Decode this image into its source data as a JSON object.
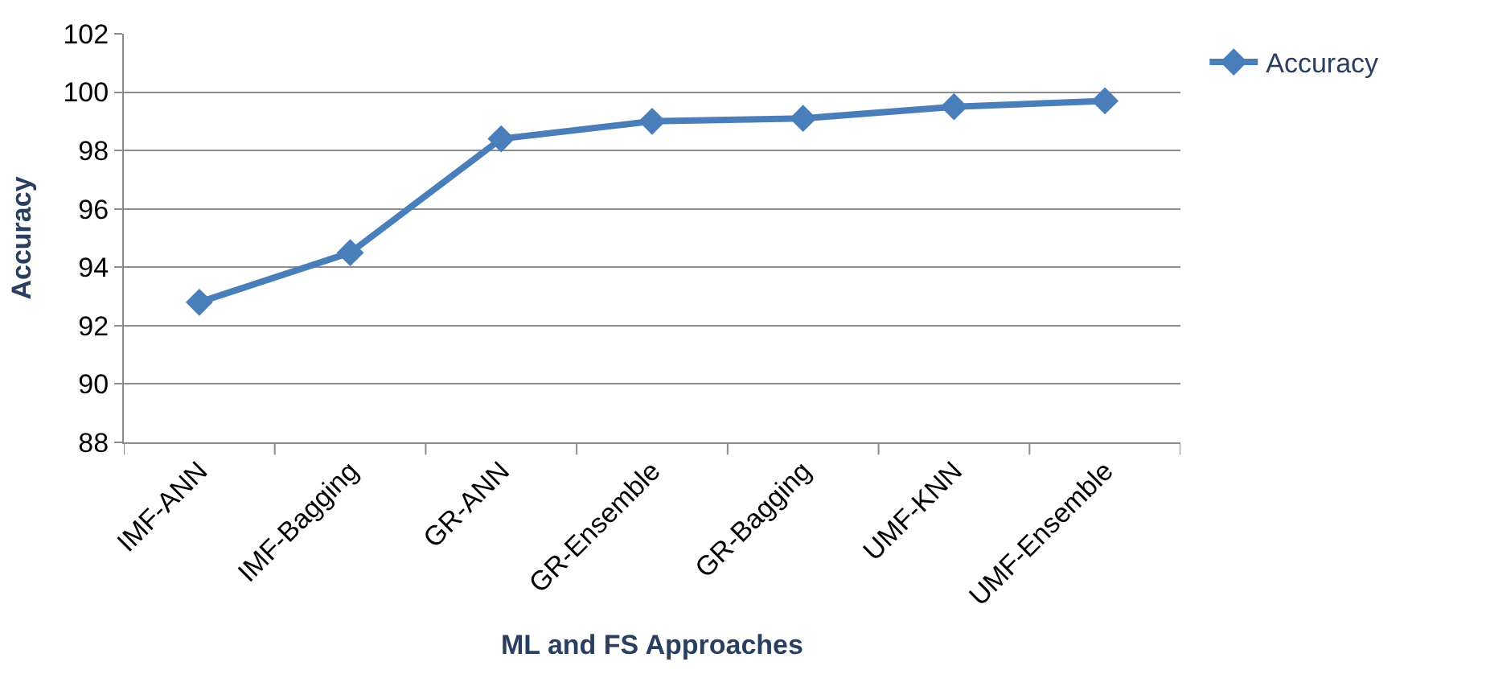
{
  "chart_data": {
    "type": "line",
    "xlabel": "ML and FS Approaches",
    "ylabel": "Accuracy",
    "categories": [
      "IMF-ANN",
      "IMF-Bagging",
      "GR-ANN",
      "GR-Ensemble",
      "GR-Bagging",
      "UMF-KNN",
      "UMF-Ensemble"
    ],
    "series": [
      {
        "name": "Accuracy",
        "color": "#4a7ebb",
        "values": [
          92.8,
          94.5,
          98.4,
          99.0,
          99.1,
          99.5,
          99.7
        ]
      }
    ],
    "ylim": [
      88,
      102
    ],
    "yticks": [
      88,
      90,
      92,
      94,
      96,
      98,
      100,
      102
    ],
    "grid": "y",
    "legend": "right",
    "marker": "diamond",
    "line_style": "solid"
  }
}
